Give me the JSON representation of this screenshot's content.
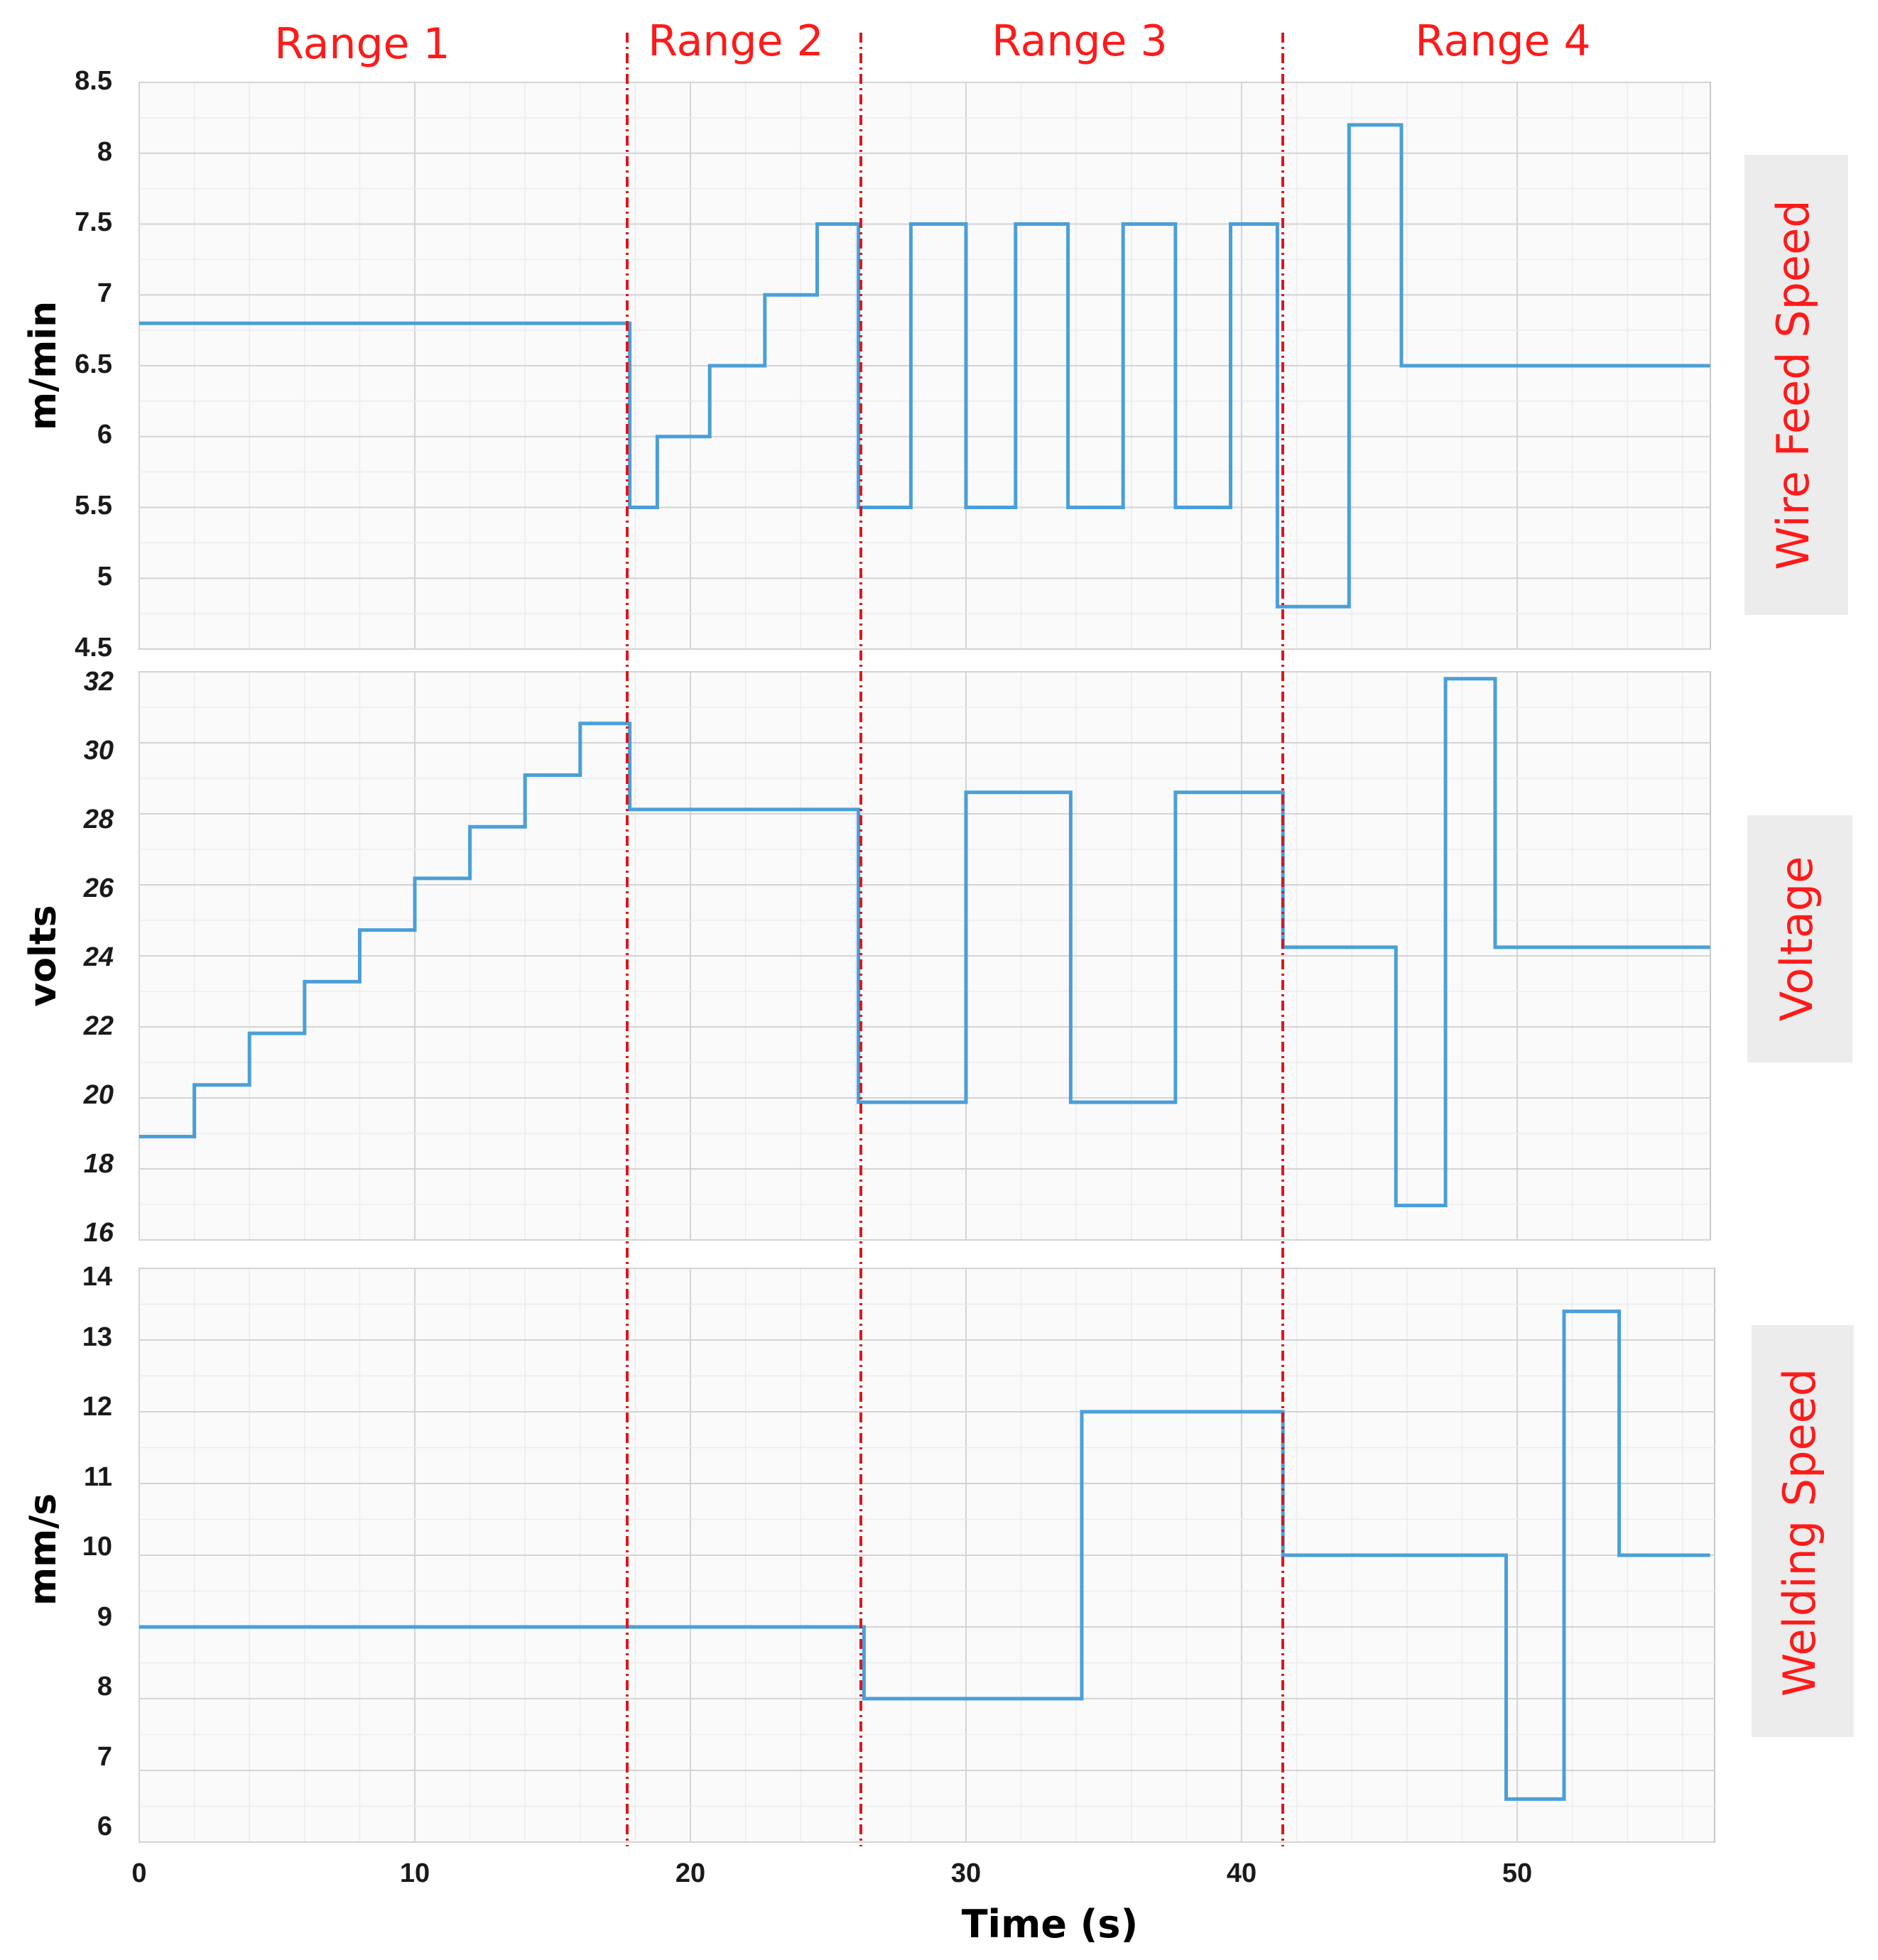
{
  "chart_data": {
    "type": "line",
    "step": true,
    "xlabel": "Time (s)",
    "xlim": [
      0,
      57
    ],
    "x_ticks": [
      "0",
      "10",
      "20",
      "30",
      "40",
      "50"
    ],
    "colors": {
      "series": "#4a9fd8",
      "range_divider": "#e0151b",
      "range_text": "#ff1a1a",
      "label_bg": "#ececec"
    },
    "ranges": [
      {
        "label": "Range 1",
        "start": 0,
        "end": 17.8
      },
      {
        "label": "Range 2",
        "start": 17.8,
        "end": 26.3
      },
      {
        "label": "Range 3",
        "start": 26.3,
        "end": 41.5
      },
      {
        "label": "Range 4",
        "start": 41.5,
        "end": 57
      }
    ],
    "panels": [
      {
        "name": "Wire Feed Speed",
        "ylabel": "m/min",
        "ylim": [
          4.5,
          8.5
        ],
        "y_ticks": [
          "4.5",
          "5",
          "5.5",
          "6",
          "6.5",
          "7",
          "7.5",
          "8",
          "8.5"
        ],
        "x": [
          0,
          17.8,
          17.8,
          18.8,
          18.8,
          20.7,
          20.7,
          22.7,
          22.7,
          24.6,
          24.6,
          26.1,
          26.1,
          28,
          28,
          30,
          30,
          31.8,
          31.8,
          33.7,
          33.7,
          35.7,
          35.7,
          37.6,
          37.6,
          39.6,
          39.6,
          41.3,
          41.3,
          43.9,
          43.9,
          45.8,
          45.8,
          57
        ],
        "y": [
          6.8,
          6.8,
          5.5,
          5.5,
          6,
          6,
          6.5,
          6.5,
          7,
          7,
          7.5,
          7.5,
          5.5,
          5.5,
          7.5,
          7.5,
          5.5,
          5.5,
          7.5,
          7.5,
          5.5,
          5.5,
          7.5,
          7.5,
          5.5,
          5.5,
          7.5,
          7.5,
          4.8,
          4.8,
          8.2,
          8.2,
          6.5,
          6.5
        ]
      },
      {
        "name": "Voltage",
        "ylabel": "volts",
        "ylim": [
          16,
          32.5
        ],
        "y_ticks": [
          "16",
          "18",
          "20",
          "22",
          "24",
          "26",
          "28",
          "30",
          "32"
        ],
        "x": [
          0,
          2,
          2,
          4,
          4,
          6,
          6,
          8,
          8,
          10,
          10,
          12,
          12,
          14,
          14,
          16,
          16,
          17.8,
          17.8,
          26.1,
          26.1,
          30,
          30,
          33.8,
          33.8,
          37.6,
          37.6,
          41.5,
          41.5,
          45.6,
          45.6,
          47.4,
          47.4,
          49.2,
          49.2,
          57
        ],
        "y": [
          19,
          19,
          20.5,
          20.5,
          22,
          22,
          23.5,
          23.5,
          25,
          25,
          26.5,
          26.5,
          28,
          28,
          29.5,
          29.5,
          31,
          31,
          28.5,
          28.5,
          20,
          20,
          29,
          29,
          20,
          20,
          29,
          29,
          24.5,
          24.5,
          17,
          17,
          32.3,
          32.3,
          24.5,
          24.5
        ]
      },
      {
        "name": "Welding Speed",
        "ylabel": "mm/s",
        "ylim": [
          6,
          14
        ],
        "y_ticks": [
          "6",
          "7",
          "8",
          "9",
          "10",
          "11",
          "12",
          "13",
          "14"
        ],
        "x": [
          0,
          26.3,
          26.3,
          34.2,
          34.2,
          41.5,
          41.5,
          49.6,
          49.6,
          51.7,
          51.7,
          53.7,
          53.7,
          57
        ],
        "y": [
          9,
          9,
          8,
          8,
          12,
          12,
          10,
          10,
          6.6,
          6.6,
          13.4,
          13.4,
          10,
          10
        ]
      }
    ]
  }
}
